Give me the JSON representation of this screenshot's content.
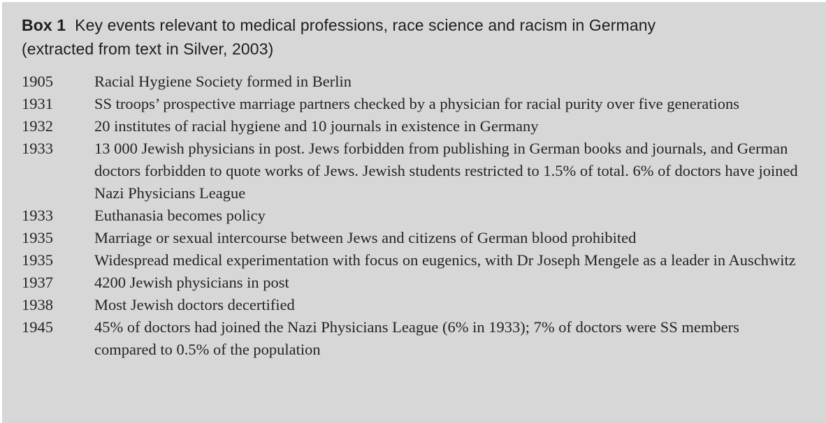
{
  "box": {
    "label": "Box 1",
    "title_rest": "Key events relevant to medical professions, race science and racism in Germany",
    "title_line2": "(extracted from text in Silver, 2003)",
    "colors": {
      "background": "#d7d7d7",
      "title_text": "#1e1e1e",
      "body_text": "#242424"
    }
  },
  "events": [
    {
      "year": "1905",
      "text": "Racial Hygiene Society formed in Berlin"
    },
    {
      "year": "1931",
      "text": "SS troops’ prospective marriage partners checked by a physician for racial purity over five generations"
    },
    {
      "year": "1932",
      "text": "20 institutes of racial hygiene and 10 journals in existence in Germany"
    },
    {
      "year": "1933",
      "text": "13 000 Jewish physicians in post. Jews forbidden from publishing in German books and journals, and German doctors forbidden to quote works of Jews. Jewish students restricted to 1.5% of total. 6% of doctors have joined Nazi Physicians League"
    },
    {
      "year": "1933",
      "text": "Euthanasia becomes policy"
    },
    {
      "year": "1935",
      "text": "Marriage or sexual intercourse between Jews and citizens of German blood prohibited"
    },
    {
      "year": "1935",
      "text": "Widespread medical experimentation with focus on eugenics, with Dr Joseph Mengele as a leader in Auschwitz"
    },
    {
      "year": "1937",
      "text": "4200 Jewish physicians in post"
    },
    {
      "year": "1938",
      "text": "Most Jewish doctors decertified"
    },
    {
      "year": "1945",
      "text": "45% of doctors had joined the Nazi Physicians League (6% in 1933); 7% of doctors were SS members compared to 0.5% of the population"
    }
  ]
}
